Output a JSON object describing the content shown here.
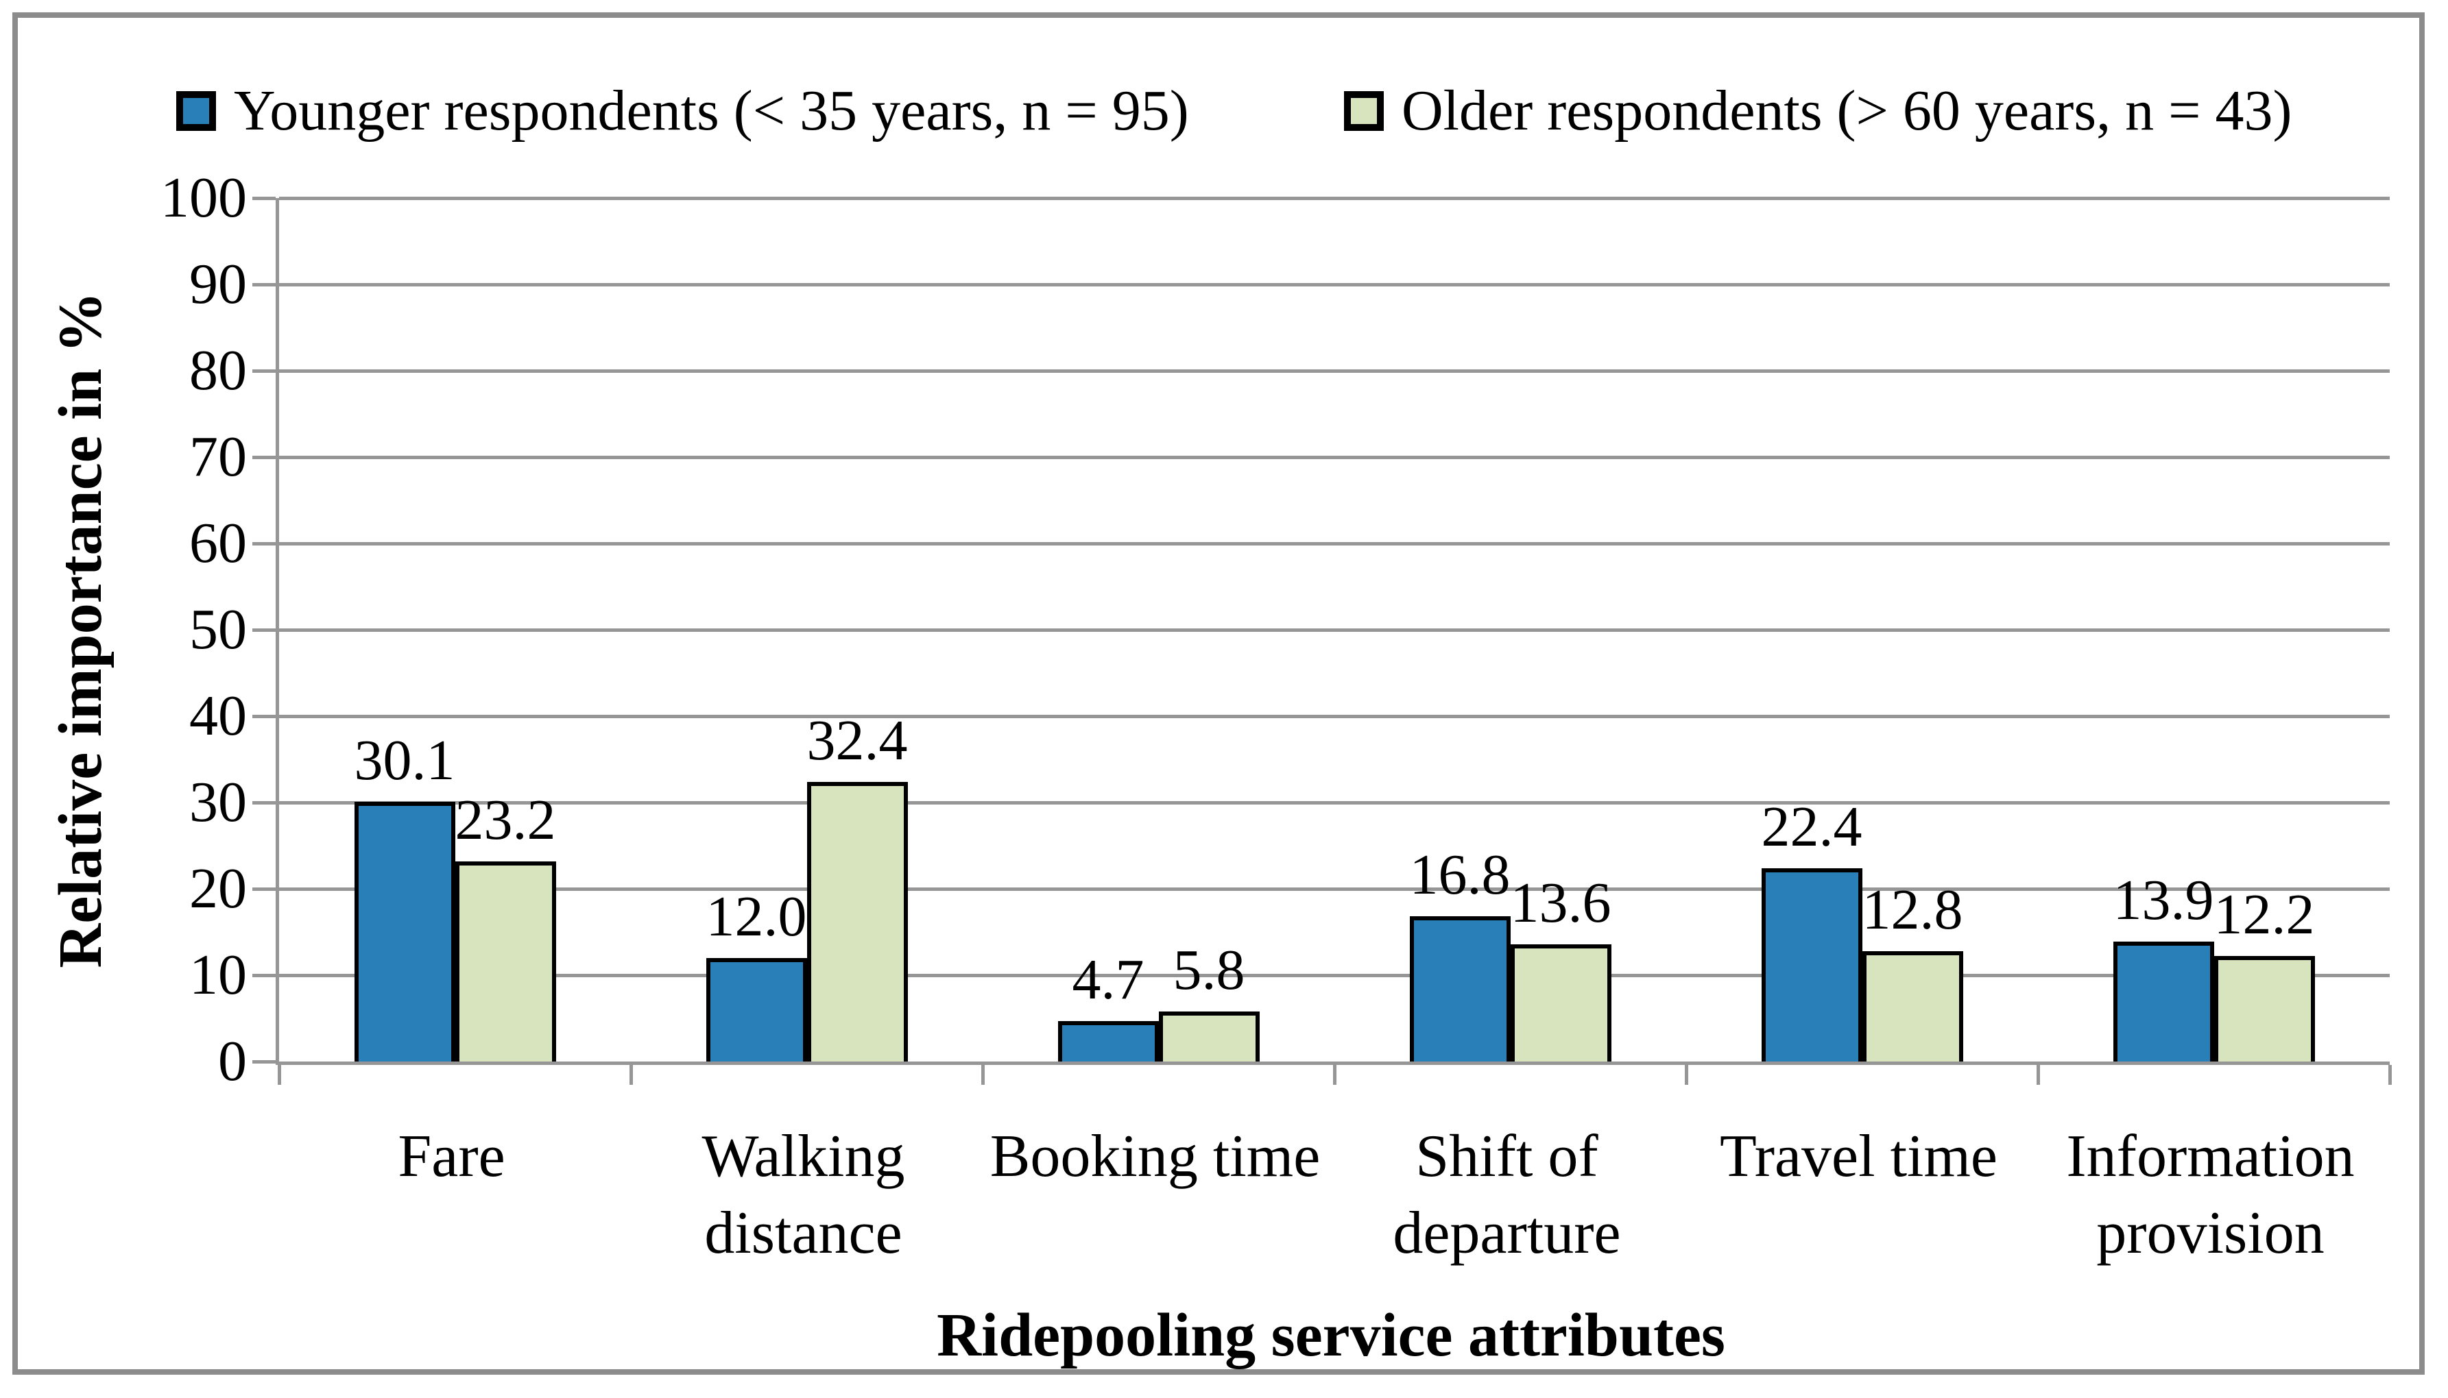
{
  "chart_data": {
    "type": "bar",
    "title": "",
    "categories": [
      "Fare",
      "Walking distance",
      "Booking time",
      "Shift of departure",
      "Travel time",
      "Information provision"
    ],
    "series": [
      {
        "name": "Younger respondents (< 35 years, n = 95)",
        "color": "#2980b9",
        "values": [
          30.1,
          12.0,
          4.7,
          16.8,
          22.4,
          13.9
        ],
        "value_labels": [
          "30.1",
          "12.0",
          "4.7",
          "16.8",
          "22.4",
          "13.9"
        ]
      },
      {
        "name": "Older respondents (> 60 years, n = 43)",
        "color": "#d7e4bd",
        "values": [
          23.2,
          32.4,
          5.8,
          13.6,
          12.8,
          12.2
        ],
        "value_labels": [
          "23.2",
          "32.4",
          "5.8",
          "13.6",
          "12.8",
          "12.2"
        ]
      }
    ],
    "xlabel": "Ridepooling service attributes",
    "ylabel": "Relative importance in %",
    "ylim": [
      0,
      100
    ],
    "ytick_step": 10,
    "ytick_labels": [
      "0",
      "10",
      "20",
      "30",
      "40",
      "50",
      "60",
      "70",
      "80",
      "90",
      "100"
    ],
    "grid": true,
    "legend_position": "top",
    "style": {
      "bar_border_color": "#000000",
      "grid_color": "#969696",
      "axis_color": "#969696",
      "frame_color": "#8c8c8c",
      "text_color": "#000000",
      "background": "#ffffff"
    }
  }
}
